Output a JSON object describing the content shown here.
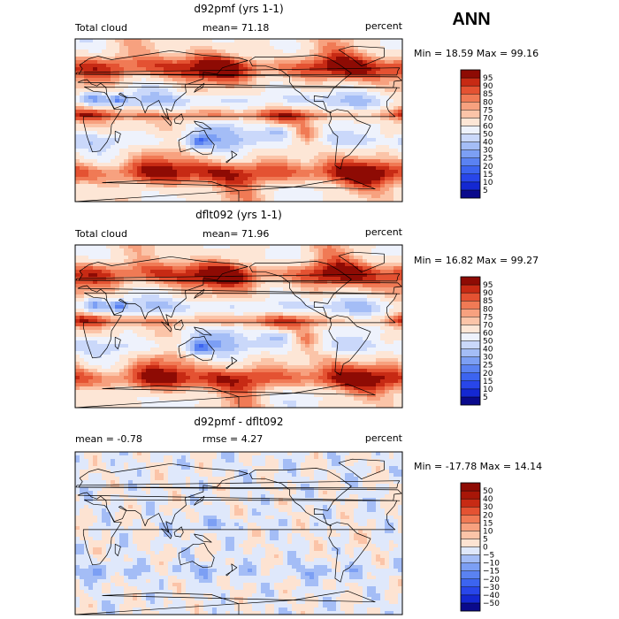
{
  "figure": {
    "season": "ANN",
    "unit": "percent"
  },
  "chart_data": [
    {
      "type": "heatmap",
      "title": "d92pmf (yrs 1-1)",
      "variable": "Total cloud",
      "stat_text": "mean=  71.18",
      "unit": "percent",
      "range_text": "Min =  18.59 Max =  99.16",
      "min": 18.59,
      "max": 99.16,
      "mean": 71.18,
      "colorbar_levels": [
        5,
        10,
        15,
        20,
        25,
        30,
        40,
        50,
        60,
        70,
        75,
        80,
        85,
        90,
        95
      ],
      "colorbar_colors": [
        "#0a0a8c",
        "#1428d2",
        "#2846ea",
        "#3c64f0",
        "#5a82f2",
        "#7c9ff4",
        "#a4bdf6",
        "#cad8fa",
        "#eef2fc",
        "#fde6d6",
        "#fbc4a8",
        "#f7a17f",
        "#f07a55",
        "#e45232",
        "#c72a14",
        "#8e0b04"
      ],
      "diverging": false
    },
    {
      "type": "heatmap",
      "title": "dflt092 (yrs 1-1)",
      "variable": "Total cloud",
      "stat_text": "mean=  71.96",
      "unit": "percent",
      "range_text": "Min =  16.82 Max =  99.27",
      "min": 16.82,
      "max": 99.27,
      "mean": 71.96,
      "colorbar_levels": [
        5,
        10,
        15,
        20,
        25,
        30,
        40,
        50,
        60,
        70,
        75,
        80,
        85,
        90,
        95
      ],
      "colorbar_colors": [
        "#0a0a8c",
        "#1428d2",
        "#2846ea",
        "#3c64f0",
        "#5a82f2",
        "#7c9ff4",
        "#a4bdf6",
        "#cad8fa",
        "#eef2fc",
        "#fde6d6",
        "#fbc4a8",
        "#f7a17f",
        "#f07a55",
        "#e45232",
        "#c72a14",
        "#8e0b04"
      ],
      "diverging": false
    },
    {
      "type": "heatmap",
      "title": "d92pmf - dflt092",
      "variable": "",
      "stat_text": "mean =   -0.78",
      "rmse_text": "rmse =    4.27",
      "unit": "percent",
      "range_text": "Min = -17.78 Max =  14.14",
      "min": -17.78,
      "max": 14.14,
      "mean": -0.78,
      "rmse": 4.27,
      "colorbar_levels": [
        -50,
        -40,
        -30,
        -20,
        -15,
        -10,
        -5,
        0,
        5,
        10,
        15,
        20,
        30,
        40,
        50
      ],
      "colorbar_labels": [
        "−50",
        "−40",
        "−30",
        "−20",
        "−15",
        "−10",
        "−5",
        "0",
        "5",
        "10",
        "15",
        "20",
        "30",
        "40",
        "50"
      ],
      "colorbar_colors": [
        "#0a0a8c",
        "#1428d2",
        "#2846ea",
        "#3c64f0",
        "#5a82f2",
        "#7c9ff4",
        "#a4bdf6",
        "#dfe8fb",
        "#fde3d2",
        "#fbc4a8",
        "#f7a17f",
        "#f07a55",
        "#e45232",
        "#c72a14",
        "#a81608",
        "#8e0b04"
      ],
      "diverging": true
    }
  ]
}
